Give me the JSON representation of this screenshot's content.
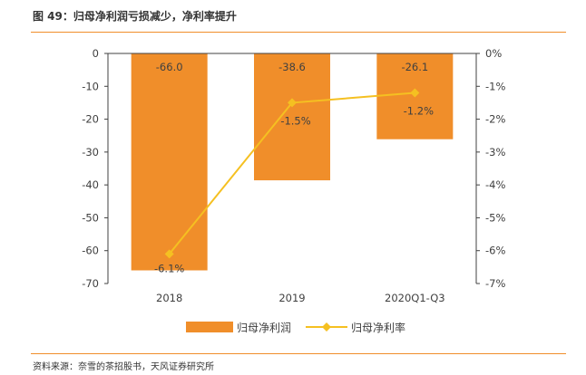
{
  "title": "图 49：归母净利润亏损减少，净利率提升",
  "source": "资料来源：奈雪的茶招股书，天风证券研究所",
  "colors": {
    "accent": "#f08e2a",
    "bar": "#f08e2a",
    "line": "#f5c021"
  },
  "chart_data": {
    "type": "bar",
    "categories": [
      "2018",
      "2019",
      "2020Q1-Q3"
    ],
    "series": [
      {
        "name": "归母净利润",
        "kind": "bar",
        "axis": "left",
        "values": [
          -66.0,
          -38.6,
          -26.1
        ],
        "labels": [
          "-66.0",
          "-38.6",
          "-26.1"
        ]
      },
      {
        "name": "归母净利率",
        "kind": "line",
        "axis": "right",
        "values": [
          -6.1,
          -1.5,
          -1.2
        ],
        "labels": [
          "-6.1%",
          "-1.5%",
          "-1.2%"
        ]
      }
    ],
    "left_axis": {
      "ylim": [
        -70,
        0
      ],
      "ticks": [
        "0",
        "-10",
        "-20",
        "-30",
        "-40",
        "-50",
        "-60",
        "-70"
      ]
    },
    "right_axis": {
      "ylim": [
        -7,
        0
      ],
      "ticks": [
        "0%",
        "-1%",
        "-2%",
        "-3%",
        "-4%",
        "-5%",
        "-6%",
        "-7%"
      ]
    },
    "grid": false,
    "legend_position": "bottom"
  }
}
